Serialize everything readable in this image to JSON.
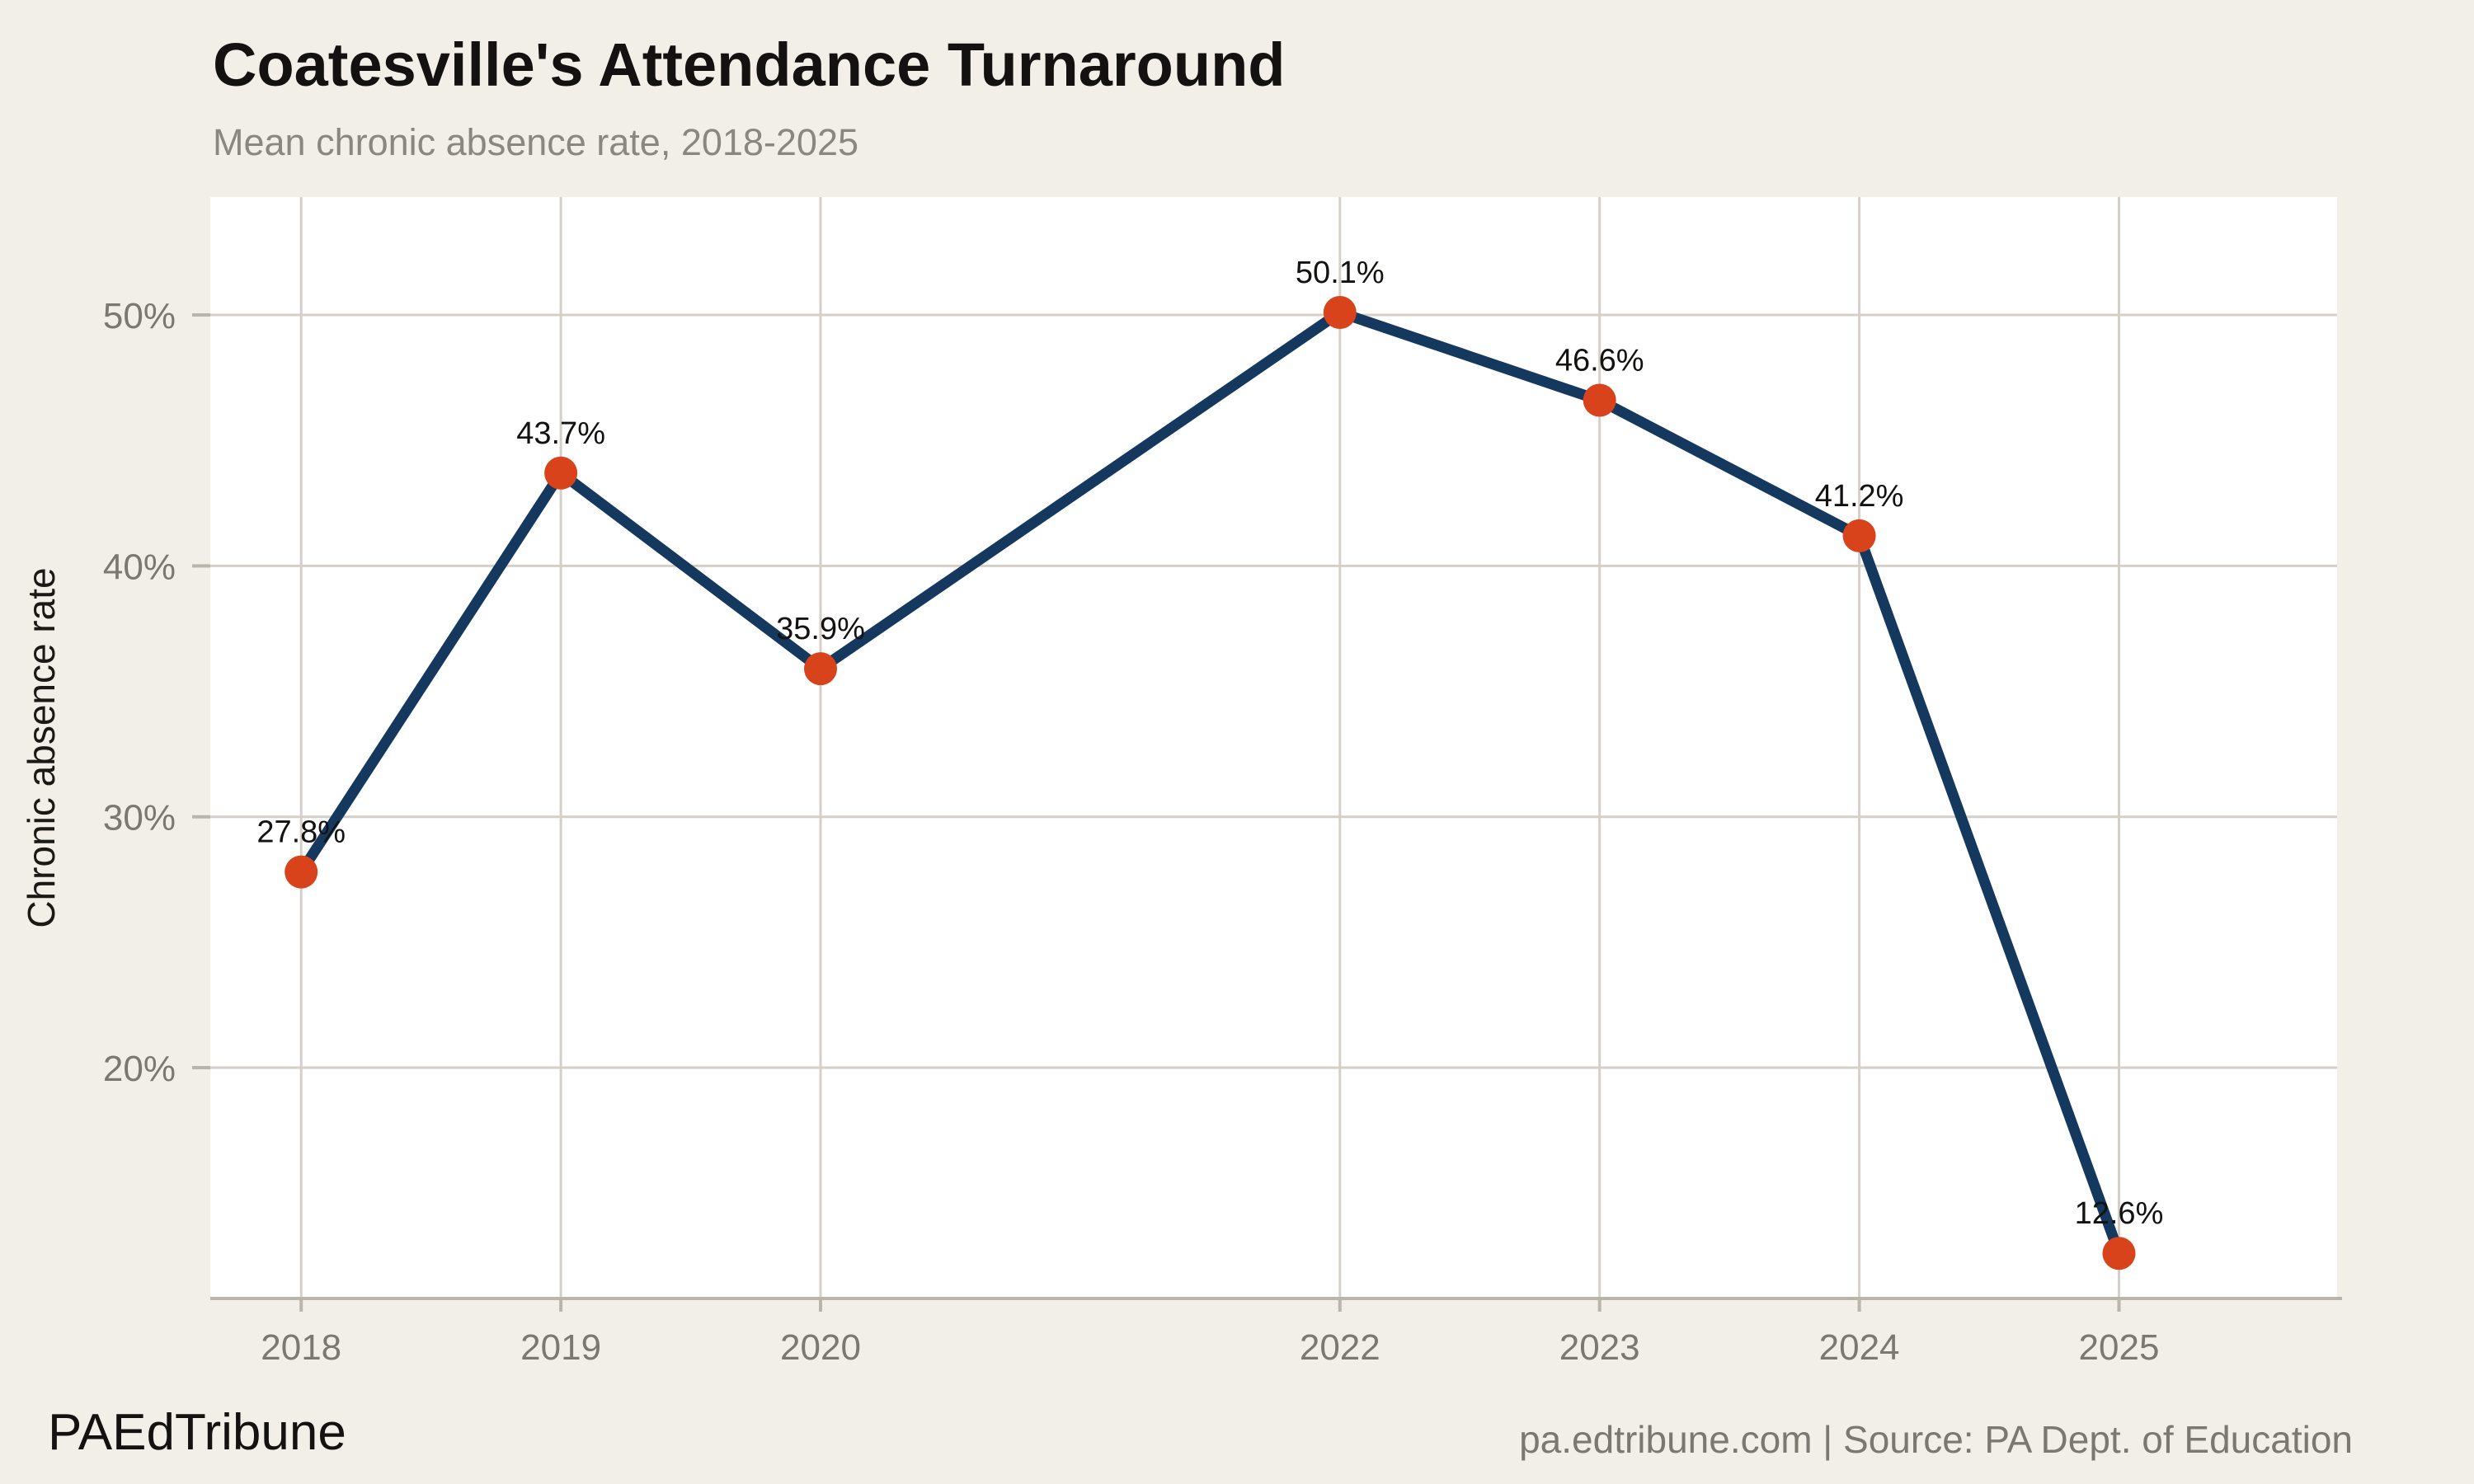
{
  "page": {
    "background_color": "#F2EFE9",
    "title": "Coatesville's Attendance Turnaround",
    "subtitle": "Mean chronic absence rate, 2018-2025",
    "footer_left": "PAEdTribune",
    "footer_right": "pa.edtribune.com | Source: PA Dept. of Education"
  },
  "chart_data": {
    "type": "line",
    "title": "Coatesville's Attendance Turnaround",
    "subtitle": "Mean chronic absence rate, 2018-2025",
    "xlabel": "",
    "ylabel": "Chronic absence rate",
    "x": [
      2018,
      2019,
      2020,
      2022,
      2023,
      2024,
      2025
    ],
    "values": [
      27.8,
      43.7,
      35.9,
      50.1,
      46.6,
      41.2,
      12.6
    ],
    "point_labels": [
      "27.8%",
      "43.7%",
      "35.9%",
      "50.1%",
      "46.6%",
      "41.2%",
      "12.6%"
    ],
    "x_tick_values": [
      2018,
      2019,
      2020,
      2022,
      2023,
      2024,
      2025
    ],
    "x_tick_labels": [
      "2018",
      "2019",
      "2020",
      "2022",
      "2023",
      "2024",
      "2025"
    ],
    "y_tick_values": [
      20,
      30,
      40,
      50
    ],
    "y_tick_labels": [
      "20%",
      "30%",
      "40%",
      "50%"
    ],
    "xlim": [
      2017.65,
      2025.84
    ],
    "ylim": [
      10.8,
      54.7
    ],
    "grid": true,
    "legend": "none",
    "colors": {
      "line": "#15395E",
      "point": "#D8431B",
      "grid": "#D4D0C8",
      "axis": "#B9B5AC",
      "tick_label": "#7C7870",
      "panel": "#FFFFFF",
      "title": "#131210",
      "subtitle": "#8B877F",
      "data_label": "#131210",
      "axis_title": "#1A1915"
    }
  }
}
